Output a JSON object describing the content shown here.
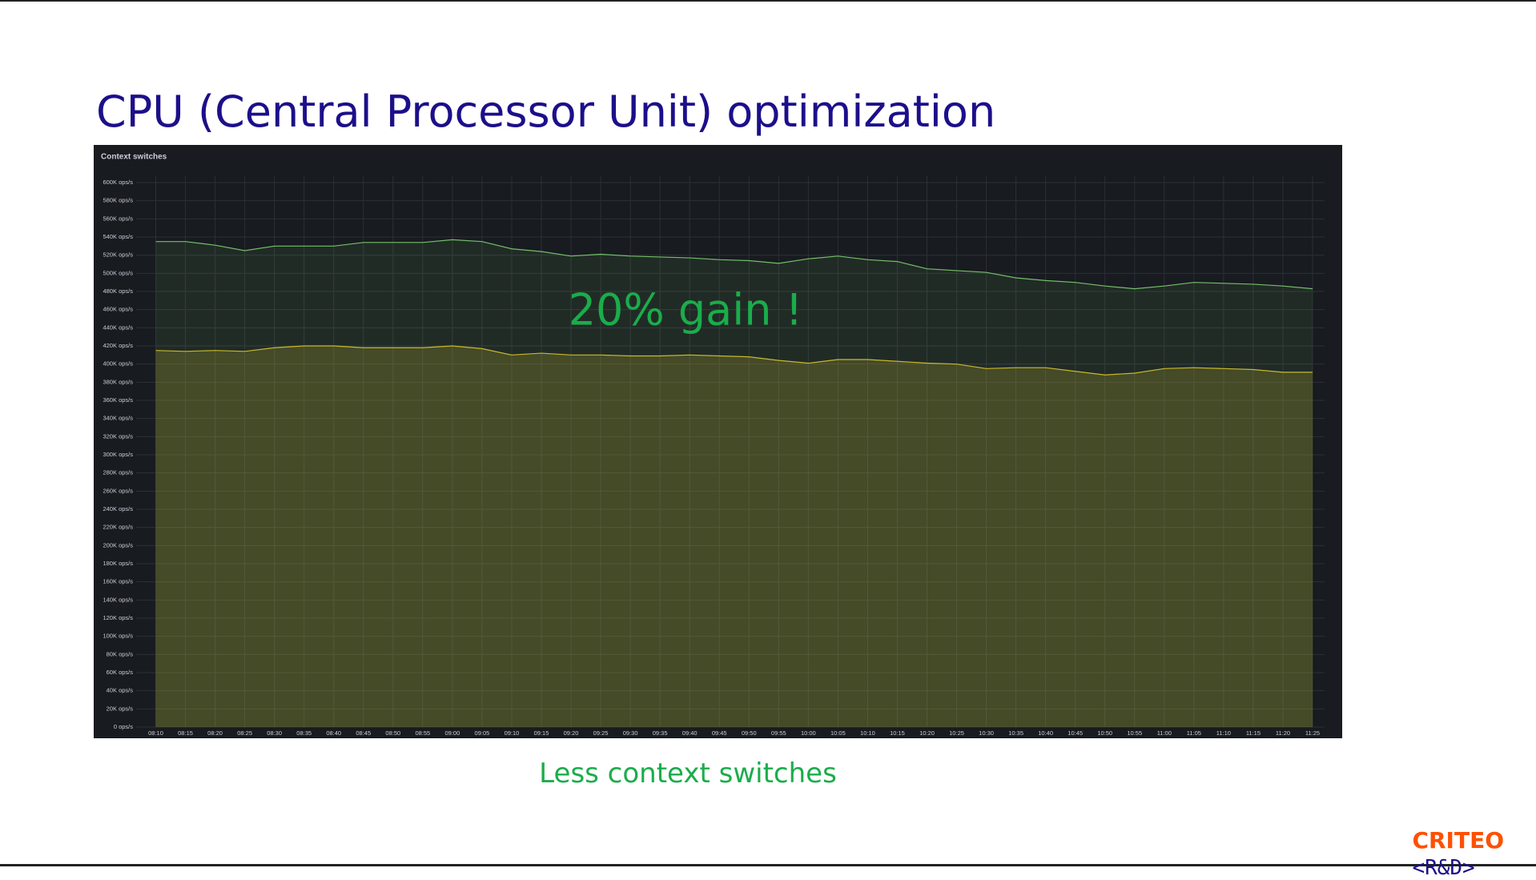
{
  "slide": {
    "title": "CPU (Central Processor Unit) optimization",
    "caption": "Less context switches",
    "logo": {
      "brand": "CRITEO",
      "tag": "<R&D>"
    }
  },
  "chart_data": {
    "type": "area",
    "title": "Context switches",
    "annotation": "20% gain !",
    "x": [
      "08:10",
      "08:15",
      "08:20",
      "08:25",
      "08:30",
      "08:35",
      "08:40",
      "08:45",
      "08:50",
      "08:55",
      "09:00",
      "09:05",
      "09:10",
      "09:15",
      "09:20",
      "09:25",
      "09:30",
      "09:35",
      "09:40",
      "09:45",
      "09:50",
      "09:55",
      "10:00",
      "10:05",
      "10:10",
      "10:15",
      "10:20",
      "10:25",
      "10:30",
      "10:35",
      "10:40",
      "10:45",
      "10:50",
      "10:55",
      "11:00",
      "11:05",
      "11:10",
      "11:15",
      "11:20",
      "11:25"
    ],
    "series": [
      {
        "color": "#73bf69",
        "values": [
          535000,
          535000,
          531000,
          525000,
          530000,
          530000,
          530000,
          534000,
          534000,
          534000,
          537000,
          535000,
          527000,
          524000,
          519000,
          521000,
          519000,
          518000,
          517000,
          515000,
          514000,
          511000,
          516000,
          519000,
          515000,
          513000,
          505000,
          503000,
          501000,
          495000,
          492000,
          490000,
          486000,
          483000,
          486000,
          490000,
          489000,
          488000,
          486000,
          483000
        ]
      },
      {
        "color": "#c8b92c",
        "values": [
          415000,
          414000,
          415000,
          414000,
          418000,
          420000,
          420000,
          418000,
          418000,
          418000,
          420000,
          417000,
          410000,
          412000,
          410000,
          410000,
          409000,
          409000,
          410000,
          409000,
          408000,
          404000,
          401000,
          405000,
          405000,
          403000,
          401000,
          400000,
          395000,
          396000,
          396000,
          392000,
          388000,
          390000,
          395000,
          396000,
          395000,
          394000,
          391000,
          391000
        ]
      }
    ],
    "ylim": [
      0,
      600000
    ],
    "yticks": [
      {
        "value": 0,
        "label": "0 ops/s"
      },
      {
        "value": 20000,
        "label": "20K ops/s"
      },
      {
        "value": 40000,
        "label": "40K ops/s"
      },
      {
        "value": 60000,
        "label": "60K ops/s"
      },
      {
        "value": 80000,
        "label": "80K ops/s"
      },
      {
        "value": 100000,
        "label": "100K ops/s"
      },
      {
        "value": 120000,
        "label": "120K ops/s"
      },
      {
        "value": 140000,
        "label": "140K ops/s"
      },
      {
        "value": 160000,
        "label": "160K ops/s"
      },
      {
        "value": 180000,
        "label": "180K ops/s"
      },
      {
        "value": 200000,
        "label": "200K ops/s"
      },
      {
        "value": 220000,
        "label": "220K ops/s"
      },
      {
        "value": 240000,
        "label": "240K ops/s"
      },
      {
        "value": 260000,
        "label": "260K ops/s"
      },
      {
        "value": 280000,
        "label": "280K ops/s"
      },
      {
        "value": 300000,
        "label": "300K ops/s"
      },
      {
        "value": 320000,
        "label": "320K ops/s"
      },
      {
        "value": 340000,
        "label": "340K ops/s"
      },
      {
        "value": 360000,
        "label": "360K ops/s"
      },
      {
        "value": 380000,
        "label": "380K ops/s"
      },
      {
        "value": 400000,
        "label": "400K ops/s"
      },
      {
        "value": 420000,
        "label": "420K ops/s"
      },
      {
        "value": 440000,
        "label": "440K ops/s"
      },
      {
        "value": 460000,
        "label": "460K ops/s"
      },
      {
        "value": 480000,
        "label": "480K ops/s"
      },
      {
        "value": 500000,
        "label": "500K ops/s"
      },
      {
        "value": 520000,
        "label": "520K ops/s"
      },
      {
        "value": 540000,
        "label": "540K ops/s"
      },
      {
        "value": 560000,
        "label": "560K ops/s"
      },
      {
        "value": 580000,
        "label": "580K ops/s"
      },
      {
        "value": 600000,
        "label": "600K ops/s"
      }
    ],
    "grid": true
  }
}
